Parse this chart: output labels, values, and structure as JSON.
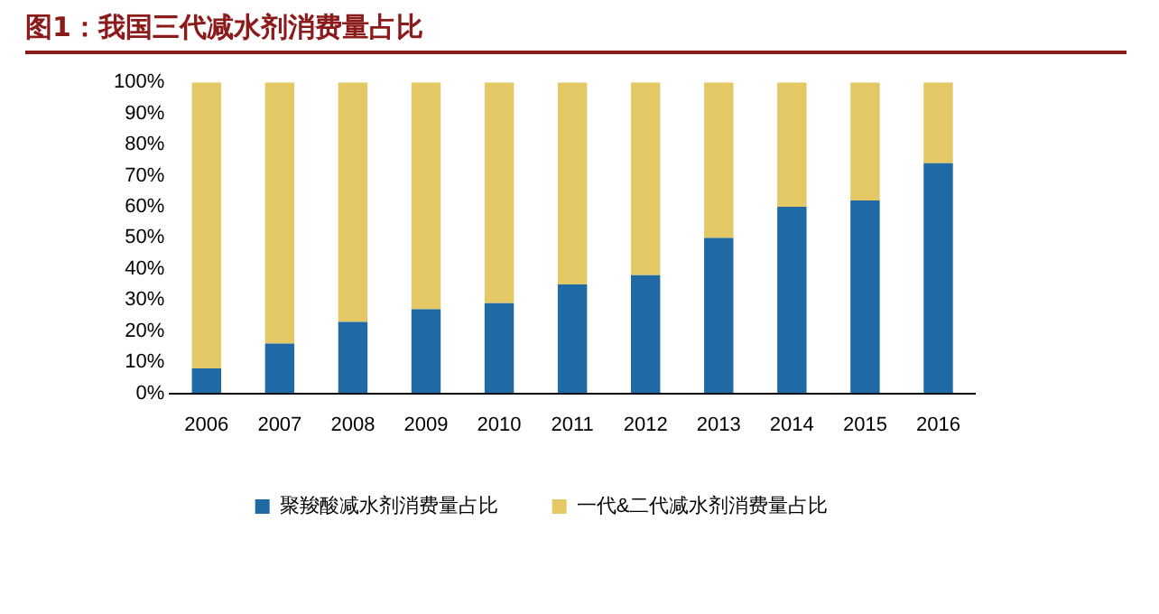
{
  "chart_data": {
    "type": "bar",
    "title": "图1：我国三代减水剂消费量占比",
    "stacked": true,
    "categories": [
      "2006",
      "2007",
      "2008",
      "2009",
      "2010",
      "2011",
      "2012",
      "2013",
      "2014",
      "2015",
      "2016"
    ],
    "series": [
      {
        "name": "聚羧酸减水剂消费量占比",
        "color": "#1f6aa5",
        "values": [
          8,
          16,
          23,
          27,
          29,
          35,
          38,
          50,
          60,
          62,
          74
        ]
      },
      {
        "name": "一代&二代减水剂消费量占比",
        "color": "#e4c866",
        "values": [
          92,
          84,
          77,
          73,
          71,
          65,
          62,
          50,
          40,
          38,
          26
        ]
      }
    ],
    "ylim": [
      0,
      100
    ],
    "yticks": [
      {
        "value": 0,
        "label": "0%"
      },
      {
        "value": 10,
        "label": "10%"
      },
      {
        "value": 20,
        "label": "20%"
      },
      {
        "value": 30,
        "label": "30%"
      },
      {
        "value": 40,
        "label": "40%"
      },
      {
        "value": 50,
        "label": "50%"
      },
      {
        "value": 60,
        "label": "60%"
      },
      {
        "value": 70,
        "label": "70%"
      },
      {
        "value": 80,
        "label": "80%"
      },
      {
        "value": 90,
        "label": "90%"
      },
      {
        "value": 100,
        "label": "100%"
      }
    ],
    "grid": false,
    "legend": "bottom"
  }
}
